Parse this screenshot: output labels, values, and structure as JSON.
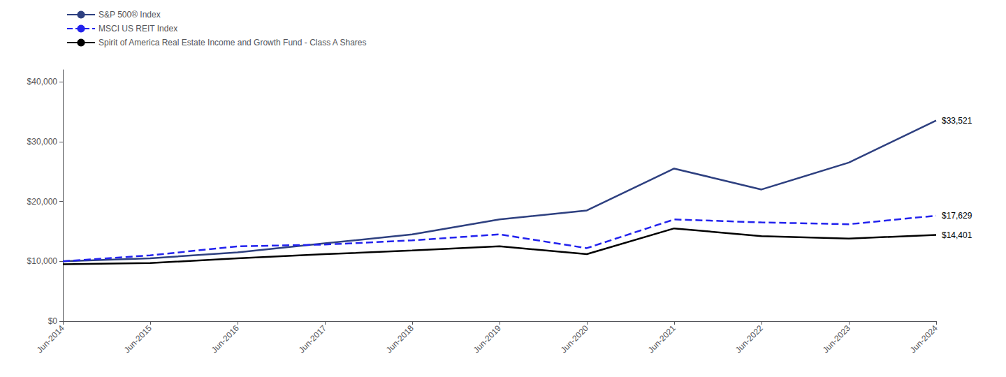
{
  "chart_data": {
    "type": "line",
    "categories": [
      "Jun-2014",
      "Jun-2015",
      "Jun-2016",
      "Jun-2017",
      "Jun-2018",
      "Jun-2019",
      "Jun-2020",
      "Jun-2021",
      "Jun-2022",
      "Jun-2023",
      "Jun-2024"
    ],
    "series": [
      {
        "name": "S&P 500® Index",
        "color": "#2e4080",
        "line_style": "solid",
        "values": [
          10000,
          10500,
          11500,
          13000,
          14500,
          17000,
          18500,
          25500,
          22000,
          26500,
          33521
        ]
      },
      {
        "name": "MSCI US REIT Index",
        "color": "#2222ee",
        "line_style": "dashed",
        "values": [
          10000,
          11000,
          12500,
          12800,
          13500,
          14500,
          12200,
          17000,
          16500,
          16200,
          17629
        ]
      },
      {
        "name": "Spirit of America Real Estate Income and Growth Fund - Class A Shares",
        "color": "#000000",
        "line_style": "solid",
        "values": [
          9500,
          9700,
          10500,
          11200,
          11800,
          12500,
          11200,
          15500,
          14200,
          13800,
          14401
        ]
      }
    ],
    "annotations": [
      {
        "text": "$33,521",
        "x": "Jun-2024",
        "y": 33521
      },
      {
        "text": "$17,629",
        "x": "Jun-2024",
        "y": 17629
      },
      {
        "text": "$14,401",
        "x": "Jun-2024",
        "y": 14401
      }
    ],
    "ylim": [
      0,
      42000
    ],
    "yticks": [
      {
        "value": 0,
        "label": "$0"
      },
      {
        "value": 10000,
        "label": "$10,000"
      },
      {
        "value": 20000,
        "label": "$20,000"
      },
      {
        "value": 30000,
        "label": "$30,000"
      },
      {
        "value": 40000,
        "label": "$40,000"
      }
    ],
    "grid": false,
    "legend": "upper left"
  }
}
